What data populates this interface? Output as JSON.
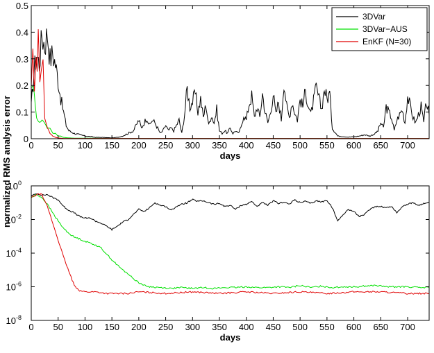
{
  "chart_data": [
    {
      "type": "line",
      "xlabel": "days",
      "ylabel": "",
      "xlim": [
        0,
        740
      ],
      "ylim": [
        0,
        0.5
      ],
      "x_ticks": [
        "0",
        "50",
        "100",
        "150",
        "200",
        "250",
        "300",
        "350",
        "400",
        "450",
        "500",
        "550",
        "600",
        "650",
        "700"
      ],
      "y_ticks": [
        "0",
        "0.1",
        "0.2",
        "0.3",
        "0.4",
        "0.5"
      ],
      "legend_position": "top-right",
      "series": [
        {
          "name": "3DVar",
          "color": "#000000",
          "x": [
            0,
            5,
            10,
            15,
            20,
            25,
            30,
            35,
            40,
            45,
            50,
            55,
            60,
            65,
            70,
            80,
            90,
            100,
            110,
            120,
            130,
            140,
            150,
            160,
            170,
            180,
            190,
            195,
            200,
            205,
            210,
            215,
            220,
            225,
            230,
            235,
            240,
            245,
            250,
            255,
            260,
            265,
            270,
            275,
            280,
            285,
            290,
            295,
            300,
            305,
            310,
            315,
            320,
            325,
            330,
            335,
            340,
            345,
            350,
            355,
            360,
            365,
            370,
            375,
            380,
            385,
            390,
            395,
            400,
            405,
            410,
            415,
            420,
            425,
            430,
            435,
            440,
            445,
            450,
            455,
            460,
            465,
            470,
            475,
            480,
            485,
            490,
            495,
            500,
            505,
            510,
            515,
            520,
            525,
            530,
            535,
            540,
            545,
            550,
            555,
            560,
            570,
            580,
            590,
            600,
            610,
            620,
            630,
            640,
            645,
            650,
            655,
            660,
            665,
            670,
            675,
            680,
            685,
            690,
            695,
            700,
            705,
            710,
            715,
            720,
            725,
            730,
            735,
            740
          ],
          "y": [
            0.12,
            0.25,
            0.32,
            0.28,
            0.39,
            0.35,
            0.4,
            0.3,
            0.32,
            0.28,
            0.22,
            0.15,
            0.1,
            0.05,
            0.03,
            0.02,
            0.015,
            0.01,
            0.008,
            0.005,
            0.005,
            0.004,
            0.003,
            0.005,
            0.01,
            0.02,
            0.03,
            0.05,
            0.07,
            0.04,
            0.06,
            0.08,
            0.05,
            0.07,
            0.06,
            0.04,
            0.02,
            0.03,
            0.05,
            0.03,
            0.04,
            0.03,
            0.05,
            0.07,
            0.02,
            0.09,
            0.19,
            0.12,
            0.14,
            0.17,
            0.1,
            0.15,
            0.08,
            0.13,
            0.05,
            0.09,
            0.06,
            0.11,
            0.03,
            0.02,
            0.03,
            0.02,
            0.04,
            0.02,
            0.03,
            0.02,
            0.04,
            0.09,
            0.07,
            0.13,
            0.16,
            0.08,
            0.12,
            0.08,
            0.17,
            0.1,
            0.06,
            0.1,
            0.17,
            0.09,
            0.14,
            0.07,
            0.22,
            0.12,
            0.08,
            0.14,
            0.1,
            0.07,
            0.15,
            0.12,
            0.18,
            0.13,
            0.09,
            0.14,
            0.19,
            0.15,
            0.11,
            0.19,
            0.15,
            0.17,
            0.04,
            0.01,
            0.008,
            0.006,
            0.007,
            0.01,
            0.015,
            0.01,
            0.02,
            0.03,
            0.06,
            0.04,
            0.12,
            0.1,
            0.08,
            0.03,
            0.07,
            0.09,
            0.11,
            0.06,
            0.16,
            0.12,
            0.08,
            0.06,
            0.09,
            0.12,
            0.06,
            0.14,
            0.09
          ]
        },
        {
          "name": "3DVar−AUS",
          "color": "#00e000",
          "x": [
            0,
            5,
            10,
            15,
            20,
            25,
            30,
            35,
            40,
            45,
            50,
            55,
            60,
            65,
            70,
            80,
            100,
            150,
            200,
            300,
            400,
            500,
            600,
            700,
            740
          ],
          "y": [
            0.2,
            0.18,
            0.08,
            0.06,
            0.07,
            0.06,
            0.04,
            0.04,
            0.02,
            0.02,
            0.01,
            0.01,
            0.005,
            0.004,
            0.003,
            0.002,
            0.002,
            0.001,
            0.001,
            0.001,
            0.001,
            0.001,
            0.001,
            0.001,
            0.001
          ]
        },
        {
          "name": "EnKF (N=30)",
          "color": "#e00000",
          "x": [
            0,
            3,
            6,
            9,
            11,
            13,
            16,
            19,
            22,
            25,
            30,
            35,
            40,
            45,
            50,
            55,
            60,
            100,
            200,
            300,
            400,
            500,
            600,
            700,
            740
          ],
          "y": [
            0.2,
            0.33,
            0.18,
            0.3,
            0.25,
            0.43,
            0.22,
            0.25,
            0.3,
            0.08,
            0.04,
            0.02,
            0.01,
            0.005,
            0.003,
            0.002,
            0.001,
            0.001,
            0.001,
            0.001,
            0.001,
            0.001,
            0.001,
            0.001,
            0.001
          ]
        }
      ]
    },
    {
      "type": "line",
      "xlabel": "days",
      "ylabel": "normalized RMS analysis error",
      "xlim": [
        0,
        740
      ],
      "ylim": [
        1e-08,
        1
      ],
      "y_scale": "log",
      "x_ticks": [
        "0",
        "50",
        "100",
        "150",
        "200",
        "250",
        "300",
        "350",
        "400",
        "450",
        "500",
        "550",
        "600",
        "650",
        "700"
      ],
      "y_ticks": [
        {
          "base": "10",
          "exp": "0",
          "value": 1
        },
        {
          "base": "10",
          "exp": "-2",
          "value": 0.01
        },
        {
          "base": "10",
          "exp": "-4",
          "value": 0.0001
        },
        {
          "base": "10",
          "exp": "-6",
          "value": 1e-06
        },
        {
          "base": "10",
          "exp": "-8",
          "value": 1e-08
        }
      ],
      "series": [
        {
          "name": "3DVar",
          "color": "#000000",
          "x": [
            0,
            10,
            20,
            30,
            40,
            50,
            60,
            70,
            80,
            90,
            100,
            110,
            120,
            130,
            140,
            150,
            160,
            170,
            180,
            190,
            200,
            210,
            220,
            230,
            240,
            250,
            260,
            270,
            280,
            290,
            300,
            310,
            320,
            330,
            340,
            350,
            360,
            370,
            380,
            390,
            400,
            410,
            420,
            430,
            440,
            450,
            460,
            470,
            480,
            490,
            500,
            510,
            520,
            530,
            540,
            550,
            560,
            570,
            580,
            590,
            600,
            610,
            620,
            630,
            640,
            650,
            660,
            670,
            680,
            690,
            700,
            710,
            720,
            730,
            740
          ],
          "y": [
            0.25,
            0.35,
            0.28,
            0.3,
            0.2,
            0.15,
            0.06,
            0.035,
            0.025,
            0.015,
            0.012,
            0.012,
            0.008,
            0.006,
            0.004,
            0.0025,
            0.004,
            0.007,
            0.01,
            0.02,
            0.04,
            0.03,
            0.05,
            0.1,
            0.07,
            0.06,
            0.035,
            0.06,
            0.08,
            0.1,
            0.15,
            0.12,
            0.13,
            0.1,
            0.08,
            0.09,
            0.06,
            0.07,
            0.04,
            0.07,
            0.08,
            0.12,
            0.06,
            0.1,
            0.07,
            0.13,
            0.09,
            0.11,
            0.08,
            0.15,
            0.1,
            0.12,
            0.09,
            0.13,
            0.11,
            0.14,
            0.05,
            0.008,
            0.02,
            0.04,
            0.03,
            0.015,
            0.02,
            0.04,
            0.06,
            0.06,
            0.05,
            0.06,
            0.025,
            0.06,
            0.08,
            0.1,
            0.07,
            0.09,
            0.1
          ]
        },
        {
          "name": "3DVar−AUS",
          "color": "#00e000",
          "x": [
            0,
            10,
            20,
            30,
            40,
            50,
            60,
            70,
            80,
            90,
            100,
            110,
            120,
            130,
            140,
            150,
            160,
            170,
            180,
            190,
            200,
            210,
            220,
            240,
            260,
            280,
            300,
            320,
            340,
            360,
            380,
            400,
            420,
            440,
            460,
            480,
            500,
            520,
            540,
            560,
            580,
            600,
            620,
            640,
            660,
            680,
            700,
            720,
            740
          ],
          "y": [
            0.2,
            0.3,
            0.2,
            0.08,
            0.025,
            0.008,
            0.003,
            0.0015,
            0.0009,
            0.0007,
            0.0005,
            0.0004,
            0.0003,
            0.0002,
            9e-05,
            4e-05,
            2e-05,
            1e-05,
            6e-06,
            3e-06,
            1.8e-06,
            1.2e-06,
            1e-06,
            9e-07,
            8e-07,
            9e-07,
            8e-07,
            9e-07,
            8e-07,
            9e-07,
            9e-07,
            1e-06,
            9e-07,
            9e-07,
            1e-06,
            9e-07,
            1.2e-06,
            9e-07,
            1.1e-06,
            9e-07,
            1e-06,
            1e-06,
            1.1e-06,
            1.2e-06,
            1e-06,
            1e-06,
            1e-06,
            9e-07,
            9e-07
          ]
        },
        {
          "name": "EnKF (N=30)",
          "color": "#e00000",
          "x": [
            0,
            10,
            20,
            25,
            30,
            40,
            50,
            60,
            70,
            80,
            90,
            100,
            120,
            140,
            160,
            180,
            200,
            250,
            300,
            350,
            400,
            450,
            500,
            550,
            600,
            650,
            700,
            740
          ],
          "y": [
            0.2,
            0.3,
            0.32,
            0.12,
            0.06,
            0.006,
            0.0006,
            6e-05,
            8e-06,
            1.2e-06,
            6e-07,
            5e-07,
            5e-07,
            4e-07,
            4e-07,
            4e-07,
            5e-07,
            4e-07,
            5e-07,
            4e-07,
            5e-07,
            4e-07,
            5e-07,
            4e-07,
            5e-07,
            5e-07,
            4e-07,
            4e-07
          ]
        }
      ]
    }
  ]
}
